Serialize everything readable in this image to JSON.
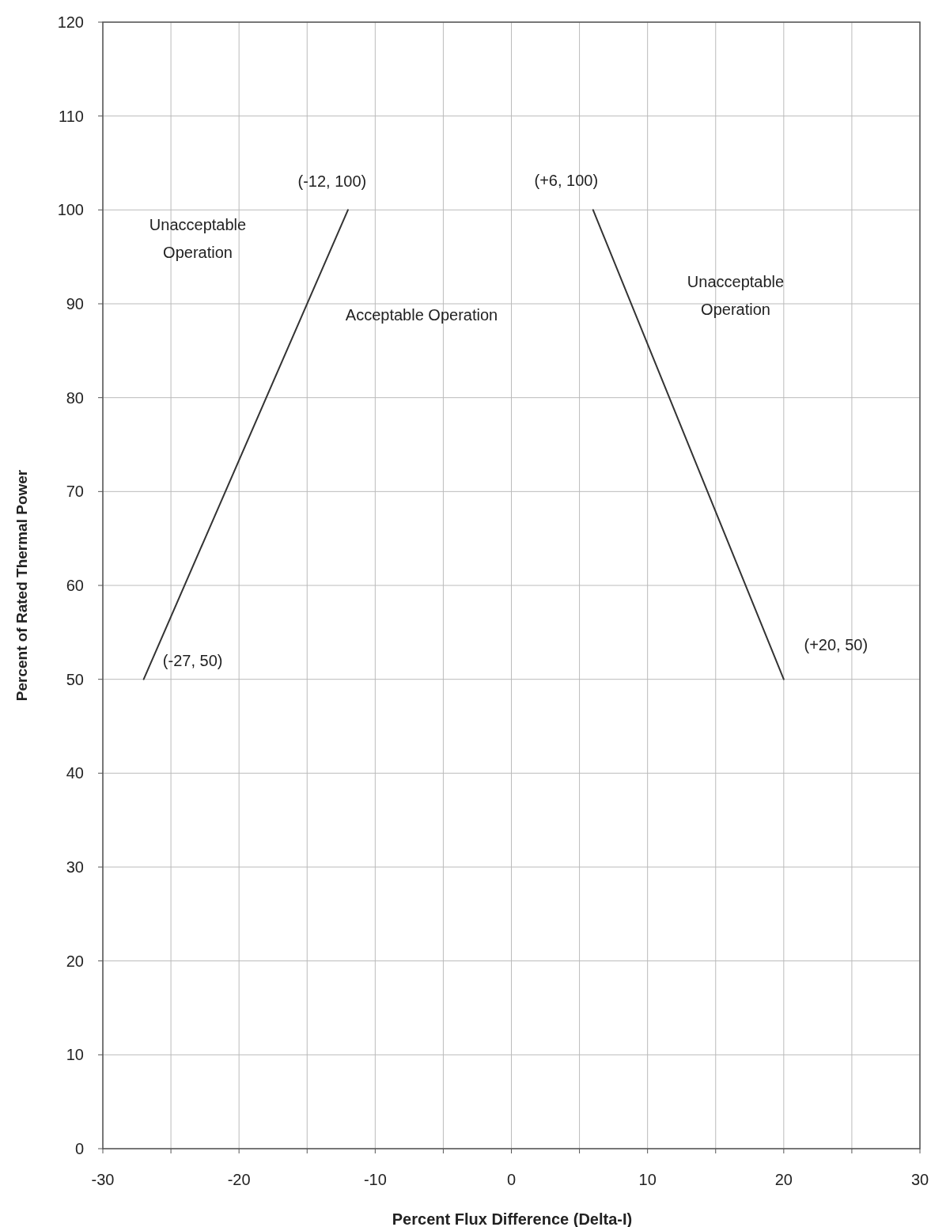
{
  "chart_data": {
    "type": "line",
    "xlabel": "Percent Flux Difference (Delta-I)",
    "ylabel": "Percent of Rated Thermal Power",
    "xlim": [
      -30,
      30
    ],
    "xticks": [
      -30,
      {
        "value": -25,
        "label": null
      },
      -20,
      {
        "value": -15,
        "label": null
      },
      -10,
      {
        "value": -5,
        "label": null
      },
      0,
      {
        "value": 5,
        "label": null
      },
      10,
      {
        "value": 15,
        "label": null
      },
      20,
      {
        "value": 25,
        "label": null
      },
      30
    ],
    "ylim": [
      0,
      120
    ],
    "yticks": [
      0,
      10,
      20,
      30,
      40,
      50,
      60,
      70,
      80,
      90,
      100,
      110,
      120
    ],
    "grid": true,
    "marker": "none",
    "line_style": "solid",
    "series": [
      {
        "color": "#333333",
        "x": [
          -27,
          -12
        ],
        "values": [
          50,
          100
        ]
      },
      {
        "color": "#333333",
        "x": [
          6,
          20
        ],
        "values": [
          100,
          50
        ]
      }
    ],
    "annotations": [
      {
        "text": "(-12, 100)",
        "x": -12,
        "y": 100
      },
      {
        "text": "(+6, 100)",
        "x": 6,
        "y": 100
      },
      {
        "text": "(-27, 50)",
        "x": -27,
        "y": 50
      },
      {
        "text": "(+20, 50)",
        "x": 20,
        "y": 50
      },
      "Unacceptable Operation",
      "Acceptable Operation",
      "Unacceptable Operation"
    ]
  }
}
